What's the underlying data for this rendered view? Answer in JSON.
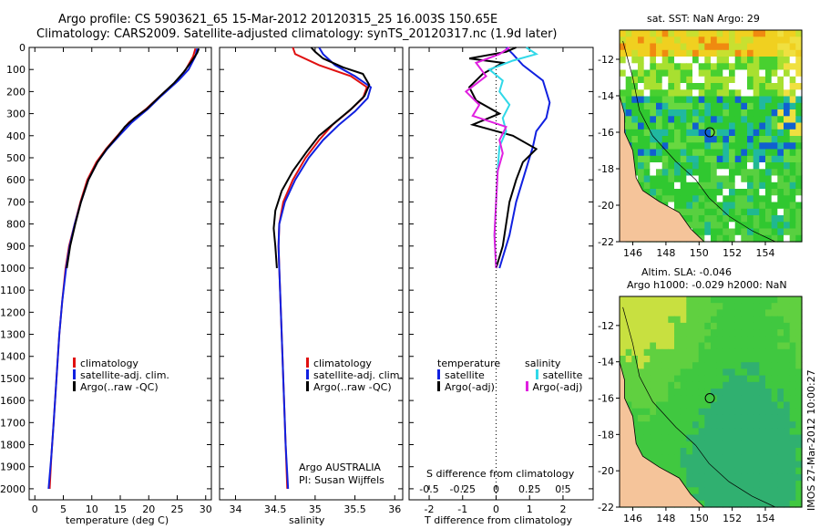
{
  "header": {
    "line1": "Argo profile: CS 5903621_65 15-Mar-2012 20120315_25 16.003S 150.65E",
    "line2": "Climatology: CARS2009. Satellite-adjusted climatology: synTS_20120317.nc (1.9d later)"
  },
  "colors": {
    "climatology": "#e01010",
    "satellite": "#1020e0",
    "argo": "#000000",
    "sal_satellite": "#30d8e8",
    "sal_argo": "#e020e0",
    "land": "#f5c49a"
  },
  "chart_data": [
    {
      "id": "temperature",
      "type": "line",
      "xlabel": "temperature (deg C)",
      "xlim": [
        -1,
        31
      ],
      "ylim": [
        0,
        2050
      ],
      "xticks": [
        "0",
        "5",
        "10",
        "15",
        "20",
        "25",
        "30"
      ],
      "yticks": [
        "0",
        "100",
        "200",
        "300",
        "400",
        "500",
        "600",
        "700",
        "800",
        "900",
        "1000",
        "1100",
        "1200",
        "1300",
        "1400",
        "1500",
        "1600",
        "1700",
        "1800",
        "1900",
        "2000"
      ],
      "legend": [
        "climatology",
        "satellite-adj. clim.",
        "Argo(..raw -QC)"
      ],
      "series": [
        {
          "name": "climatology",
          "color": "#e01010",
          "points": [
            [
              28.2,
              5
            ],
            [
              27.8,
              40
            ],
            [
              26.5,
              100
            ],
            [
              25,
              150
            ],
            [
              22,
              220
            ],
            [
              19.5,
              280
            ],
            [
              16.5,
              340
            ],
            [
              14.5,
              400
            ],
            [
              12.5,
              460
            ],
            [
              10.8,
              520
            ],
            [
              9.2,
              600
            ],
            [
              8,
              700
            ],
            [
              7,
              800
            ],
            [
              6,
              900
            ],
            [
              5.4,
              1000
            ],
            [
              4.8,
              1150
            ],
            [
              4.3,
              1300
            ],
            [
              3.8,
              1500
            ],
            [
              3.3,
              1700
            ],
            [
              2.9,
              1850
            ],
            [
              2.6,
              2000
            ]
          ]
        },
        {
          "name": "satellite-adj. clim.",
          "color": "#1020e0",
          "points": [
            [
              28.5,
              5
            ],
            [
              28.2,
              40
            ],
            [
              27,
              100
            ],
            [
              25.2,
              150
            ],
            [
              22.2,
              220
            ],
            [
              19.8,
              280
            ],
            [
              17,
              340
            ],
            [
              14.8,
              400
            ],
            [
              12.7,
              460
            ],
            [
              11,
              520
            ],
            [
              9.4,
              600
            ],
            [
              8.1,
              700
            ],
            [
              7,
              800
            ],
            [
              6.1,
              900
            ],
            [
              5.5,
              1000
            ],
            [
              4.8,
              1150
            ],
            [
              4.3,
              1300
            ],
            [
              3.8,
              1500
            ],
            [
              3.3,
              1700
            ],
            [
              2.9,
              1850
            ],
            [
              2.4,
              2000
            ]
          ]
        },
        {
          "name": "Argo(..raw -QC)",
          "color": "#000000",
          "points": [
            [
              28.8,
              5
            ],
            [
              28.5,
              25
            ],
            [
              27.6,
              60
            ],
            [
              26.2,
              110
            ],
            [
              24.5,
              160
            ],
            [
              22,
              220
            ],
            [
              19.6,
              280
            ],
            [
              17.5,
              320
            ],
            [
              15.8,
              360
            ],
            [
              14.6,
              400
            ],
            [
              12.6,
              460
            ],
            [
              11,
              520
            ],
            [
              9.4,
              600
            ],
            [
              8.1,
              700
            ],
            [
              7.1,
              800
            ],
            [
              6.2,
              900
            ],
            [
              5.6,
              1000
            ]
          ]
        }
      ]
    },
    {
      "id": "salinity",
      "type": "line",
      "xlabel": "salinity",
      "xlim": [
        33.8,
        36.1
      ],
      "ylim": [
        0,
        2050
      ],
      "xticks": [
        "34",
        "34.5",
        "35",
        "35.5",
        "36"
      ],
      "legend": [
        "climatology",
        "satellite-adj. clim.",
        "Argo(..raw -QC)"
      ],
      "annotation": [
        "Argo AUSTRALIA",
        "PI: Susan Wijffels"
      ],
      "series": [
        {
          "name": "climatology",
          "color": "#e01010",
          "points": [
            [
              34.72,
              0
            ],
            [
              34.75,
              30
            ],
            [
              35.05,
              80
            ],
            [
              35.45,
              130
            ],
            [
              35.65,
              180
            ],
            [
              35.6,
              230
            ],
            [
              35.42,
              290
            ],
            [
              35.22,
              350
            ],
            [
              35.05,
              420
            ],
            [
              34.88,
              500
            ],
            [
              34.72,
              600
            ],
            [
              34.6,
              700
            ],
            [
              34.55,
              800
            ],
            [
              34.54,
              900
            ],
            [
              34.55,
              1000
            ],
            [
              34.57,
              1200
            ],
            [
              34.6,
              1500
            ],
            [
              34.63,
              1800
            ],
            [
              34.65,
              2000
            ]
          ]
        },
        {
          "name": "satellite-adj. clim.",
          "color": "#1020e0",
          "points": [
            [
              35.05,
              0
            ],
            [
              35.1,
              30
            ],
            [
              35.25,
              80
            ],
            [
              35.5,
              130
            ],
            [
              35.7,
              180
            ],
            [
              35.66,
              230
            ],
            [
              35.5,
              290
            ],
            [
              35.3,
              350
            ],
            [
              35.1,
              420
            ],
            [
              34.92,
              500
            ],
            [
              34.75,
              600
            ],
            [
              34.62,
              700
            ],
            [
              34.55,
              800
            ],
            [
              34.54,
              900
            ],
            [
              34.55,
              1000
            ],
            [
              34.57,
              1200
            ],
            [
              34.6,
              1500
            ],
            [
              34.63,
              1800
            ],
            [
              34.66,
              2000
            ]
          ]
        },
        {
          "name": "Argo(..raw -QC)",
          "color": "#000000",
          "points": [
            [
              34.95,
              0
            ],
            [
              35.0,
              20
            ],
            [
              35.1,
              50
            ],
            [
              35.35,
              90
            ],
            [
              35.6,
              120
            ],
            [
              35.68,
              170
            ],
            [
              35.62,
              220
            ],
            [
              35.45,
              280
            ],
            [
              35.25,
              340
            ],
            [
              35.05,
              400
            ],
            [
              34.9,
              470
            ],
            [
              34.72,
              560
            ],
            [
              34.58,
              650
            ],
            [
              34.5,
              740
            ],
            [
              34.48,
              820
            ],
            [
              34.5,
              900
            ],
            [
              34.52,
              1000
            ]
          ]
        }
      ]
    },
    {
      "id": "difference",
      "type": "line",
      "xlabel": "T difference from climatology",
      "xlabel2": "S difference from climatology",
      "xlim": [
        -2.6,
        2.9
      ],
      "ylim": [
        0,
        2050
      ],
      "xticks": [
        "-2",
        "-1",
        "0",
        "1",
        "2"
      ],
      "sticks": [
        "-0.5",
        "-0.25",
        "0",
        "0.25",
        "0.5"
      ],
      "legend_title_t": "temperature",
      "legend_title_s": "salinity",
      "legend_t": [
        "satellite",
        "Argo(-adj)"
      ],
      "legend_s": [
        "satellite",
        "Argo(-adj)"
      ],
      "series": [
        {
          "name": "T satellite",
          "color": "#1020e0",
          "points": [
            [
              0.3,
              0
            ],
            [
              0.5,
              30
            ],
            [
              0.8,
              80
            ],
            [
              1.4,
              150
            ],
            [
              1.6,
              250
            ],
            [
              1.5,
              320
            ],
            [
              1.2,
              380
            ],
            [
              1.1,
              450
            ],
            [
              0.9,
              550
            ],
            [
              0.6,
              700
            ],
            [
              0.4,
              850
            ],
            [
              0.1,
              1000
            ]
          ]
        },
        {
          "name": "T Argo(-adj)",
          "color": "#000000",
          "points": [
            [
              0.6,
              0
            ],
            [
              0.3,
              20
            ],
            [
              -0.8,
              50
            ],
            [
              0.2,
              70
            ],
            [
              -0.4,
              120
            ],
            [
              -0.8,
              180
            ],
            [
              -0.6,
              240
            ],
            [
              0.1,
              300
            ],
            [
              -0.7,
              350
            ],
            [
              0.5,
              400
            ],
            [
              1.2,
              460
            ],
            [
              0.8,
              520
            ],
            [
              0.6,
              600
            ],
            [
              0.4,
              700
            ],
            [
              0.3,
              800
            ],
            [
              0.2,
              900
            ],
            [
              0,
              1000
            ]
          ]
        },
        {
          "name": "S satellite",
          "color": "#30d8e8",
          "points": [
            [
              0.9,
              0
            ],
            [
              1.2,
              30
            ],
            [
              0.5,
              60
            ],
            [
              -0.2,
              100
            ],
            [
              0.2,
              150
            ],
            [
              0.1,
              200
            ],
            [
              0.4,
              260
            ],
            [
              0.2,
              320
            ],
            [
              0.3,
              380
            ],
            [
              0.1,
              450
            ],
            [
              0.05,
              550
            ],
            [
              0,
              700
            ],
            [
              -0.05,
              850
            ],
            [
              0,
              1000
            ]
          ]
        },
        {
          "name": "S Argo(-adj)",
          "color": "#e020e0",
          "points": [
            [
              0.4,
              0
            ],
            [
              0.1,
              30
            ],
            [
              -0.6,
              70
            ],
            [
              -0.3,
              130
            ],
            [
              -0.9,
              200
            ],
            [
              -0.5,
              260
            ],
            [
              -0.7,
              310
            ],
            [
              0.3,
              360
            ],
            [
              0.1,
              420
            ],
            [
              0.2,
              480
            ],
            [
              0.05,
              560
            ],
            [
              0,
              700
            ],
            [
              -0.05,
              850
            ],
            [
              0,
              1000
            ]
          ]
        }
      ]
    },
    {
      "id": "sst-map",
      "type": "heatmap",
      "title": "sat. SST: NaN Argo: 29",
      "xlim": [
        145.2,
        156.2
      ],
      "ylim": [
        -22,
        -10.4
      ],
      "xticks": [
        "146",
        "148",
        "150",
        "152",
        "154"
      ],
      "yticks": [
        "-12",
        "-14",
        "-16",
        "-18",
        "-20",
        "-22"
      ],
      "marker": [
        150.65,
        -16.0
      ]
    },
    {
      "id": "sla-map",
      "type": "heatmap",
      "title": "Altim. SLA: -0.046",
      "subtitle": "Argo h1000: -0.029 h2000: NaN",
      "xlim": [
        145.2,
        156.2
      ],
      "ylim": [
        -22,
        -10.4
      ],
      "xticks": [
        "146",
        "148",
        "150",
        "152",
        "154"
      ],
      "yticks": [
        "-12",
        "-14",
        "-16",
        "-18",
        "-20",
        "-22"
      ],
      "marker": [
        150.65,
        -16.0
      ]
    }
  ],
  "footer": "IMOS 27-Mar-2012 10:00:27"
}
